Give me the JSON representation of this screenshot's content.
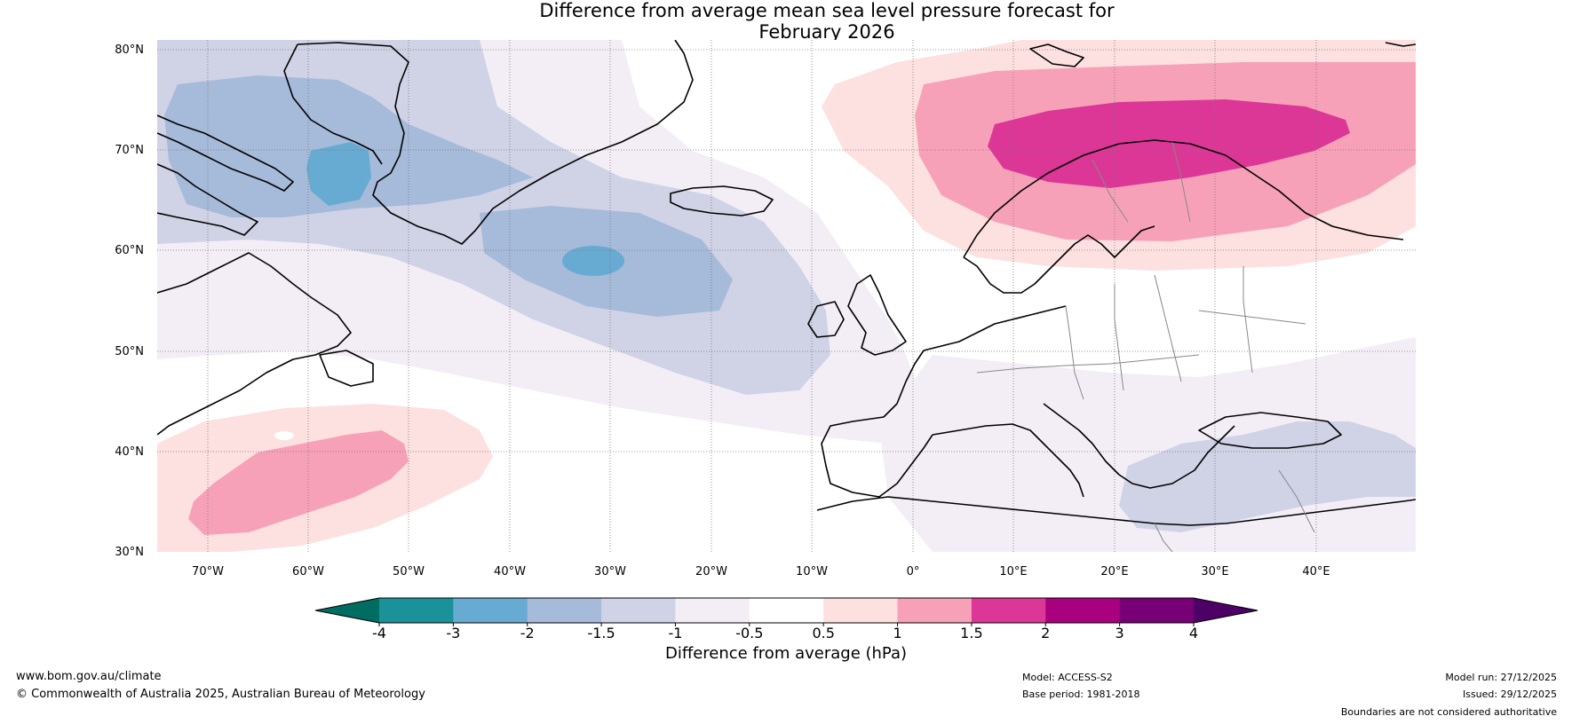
{
  "header": {
    "title_line1": "Difference from average mean sea level pressure forecast for",
    "title_line2": "February 2026"
  },
  "map": {
    "region": "North Atlantic and Europe",
    "lat_labels": [
      "80°N",
      "70°N",
      "60°N",
      "50°N",
      "40°N",
      "30°N"
    ],
    "lon_labels": [
      "70°W",
      "60°W",
      "50°W",
      "40°W",
      "30°W",
      "20°W",
      "10°W",
      "0°",
      "10°E",
      "20°E",
      "30°E",
      "40°E"
    ],
    "regions": [
      {
        "name": "greenland-low",
        "level": -2
      },
      {
        "name": "greenland-core-low",
        "level": -3
      },
      {
        "name": "north-atlantic-low",
        "level": -2
      },
      {
        "name": "north-atlantic-core-low",
        "level": -3
      },
      {
        "name": "scandinavian-high",
        "level": 1.5
      },
      {
        "name": "scandinavian-core-high",
        "level": 2
      },
      {
        "name": "subtropical-atlantic-high",
        "level": 1
      },
      {
        "name": "eastern-mediterranean-low",
        "level": -1
      }
    ]
  },
  "colorbar": {
    "label": "Difference from average (hPa)",
    "ticks": [
      "-4",
      "-3",
      "-2",
      "-1.5",
      "-1",
      "-0.5",
      "0.5",
      "1",
      "1.5",
      "2",
      "3",
      "4"
    ],
    "low_extend_color": "#006d63",
    "high_extend_color": "#4d0066",
    "colors": [
      "#1b9299",
      "#67aad2",
      "#a6bad9",
      "#d0d2e6",
      "#f3eef6",
      "#ffffff",
      "#fde0e0",
      "#f7a1b9",
      "#dc3796",
      "#a8007f",
      "#770077"
    ]
  },
  "footer": {
    "website": "www.bom.gov.au/climate",
    "copyright": "© Commonwealth of Australia 2025, Australian Bureau of Meteorology",
    "model": "Model: ACCESS-S2",
    "base_period": "Base period: 1981-2018",
    "model_run": "Model run: 27/12/2025",
    "issued": "Issued: 29/12/2025",
    "disclaimer": "Boundaries are not considered authoritative"
  }
}
